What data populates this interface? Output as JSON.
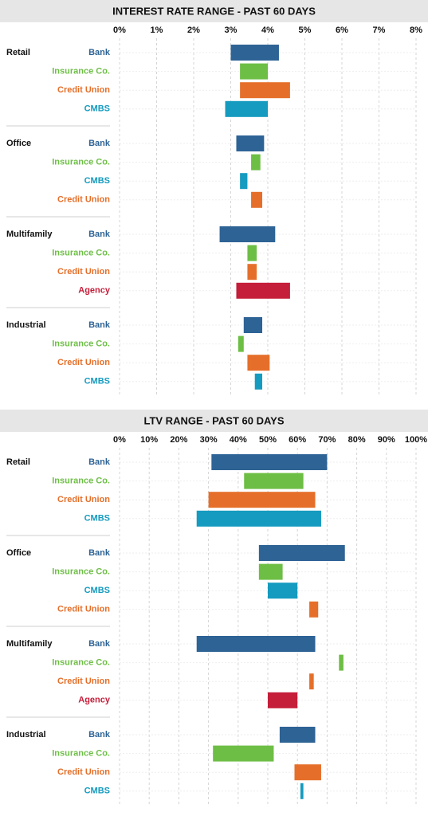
{
  "chart_data": [
    {
      "type": "range-bar",
      "title": "INTEREST RATE RANGE - PAST 60 DAYS",
      "xlim": [
        0,
        8
      ],
      "xticks": [
        {
          "value": 0,
          "label": "0%"
        },
        {
          "value": 1,
          "label": "1%"
        },
        {
          "value": 2,
          "label": "2%"
        },
        {
          "value": 3,
          "label": "3%"
        },
        {
          "value": 4,
          "label": "4%"
        },
        {
          "value": 5,
          "label": "5%"
        },
        {
          "value": 6,
          "label": "6%"
        },
        {
          "value": 7,
          "label": "7%"
        },
        {
          "value": 8,
          "label": "8%"
        }
      ],
      "grid": true,
      "groups": [
        {
          "name": "Retail",
          "rows": [
            {
              "label": "Bank",
              "color": "#2e6395",
              "range": [
                3.0,
                4.3
              ]
            },
            {
              "label": "Insurance Co.",
              "color": "#6dbe45",
              "range": [
                3.25,
                4.0
              ]
            },
            {
              "label": "Credit Union",
              "color": "#e56f2a",
              "range": [
                3.25,
                4.6
              ]
            },
            {
              "label": "CMBS",
              "color": "#159bbf",
              "range": [
                2.85,
                4.0
              ]
            }
          ]
        },
        {
          "name": "Office",
          "rows": [
            {
              "label": "Bank",
              "color": "#2e6395",
              "range": [
                3.15,
                3.9
              ]
            },
            {
              "label": "Insurance Co.",
              "color": "#6dbe45",
              "range": [
                3.55,
                3.8
              ]
            },
            {
              "label": "CMBS",
              "color": "#159bbf",
              "range": [
                3.25,
                3.45
              ]
            },
            {
              "label": "Credit Union",
              "color": "#e56f2a",
              "range": [
                3.55,
                3.85
              ]
            }
          ]
        },
        {
          "name": "Multifamily",
          "rows": [
            {
              "label": "Bank",
              "color": "#2e6395",
              "range": [
                2.7,
                4.2
              ]
            },
            {
              "label": "Insurance Co.",
              "color": "#6dbe45",
              "range": [
                3.45,
                3.7
              ]
            },
            {
              "label": "Credit Union",
              "color": "#e56f2a",
              "range": [
                3.45,
                3.7
              ]
            },
            {
              "label": "Agency",
              "color": "#c41e3a",
              "range": [
                3.15,
                4.6
              ]
            }
          ]
        },
        {
          "name": "Industrial",
          "rows": [
            {
              "label": "Bank",
              "color": "#2e6395",
              "range": [
                3.35,
                3.85
              ]
            },
            {
              "label": "Insurance Co.",
              "color": "#6dbe45",
              "range": [
                3.2,
                3.35
              ]
            },
            {
              "label": "Credit Union",
              "color": "#e56f2a",
              "range": [
                3.45,
                4.05
              ]
            },
            {
              "label": "CMBS",
              "color": "#159bbf",
              "range": [
                3.65,
                3.85
              ]
            }
          ]
        }
      ]
    },
    {
      "type": "range-bar",
      "title": "LTV RANGE - PAST 60 DAYS",
      "xlim": [
        0,
        100
      ],
      "xticks": [
        {
          "value": 0,
          "label": "0%"
        },
        {
          "value": 10,
          "label": "10%"
        },
        {
          "value": 20,
          "label": "20%"
        },
        {
          "value": 30,
          "label": "30%"
        },
        {
          "value": 40,
          "label": "40%"
        },
        {
          "value": 50,
          "label": "50%"
        },
        {
          "value": 60,
          "label": "60%"
        },
        {
          "value": 70,
          "label": "70%"
        },
        {
          "value": 80,
          "label": "80%"
        },
        {
          "value": 90,
          "label": "90%"
        },
        {
          "value": 100,
          "label": "100%"
        }
      ],
      "grid": true,
      "groups": [
        {
          "name": "Retail",
          "rows": [
            {
              "label": "Bank",
              "color": "#2e6395",
              "range": [
                31,
                70
              ]
            },
            {
              "label": "Insurance Co.",
              "color": "#6dbe45",
              "range": [
                42,
                62
              ]
            },
            {
              "label": "Credit Union",
              "color": "#e56f2a",
              "range": [
                30,
                66
              ]
            },
            {
              "label": "CMBS",
              "color": "#159bbf",
              "range": [
                26,
                68
              ]
            }
          ]
        },
        {
          "name": "Office",
          "rows": [
            {
              "label": "Bank",
              "color": "#2e6395",
              "range": [
                47,
                76
              ]
            },
            {
              "label": "Insurance Co.",
              "color": "#6dbe45",
              "range": [
                47,
                55
              ]
            },
            {
              "label": "CMBS",
              "color": "#159bbf",
              "range": [
                50,
                60
              ]
            },
            {
              "label": "Credit Union",
              "color": "#e56f2a",
              "range": [
                64,
                67
              ]
            }
          ]
        },
        {
          "name": "Multifamily",
          "rows": [
            {
              "label": "Bank",
              "color": "#2e6395",
              "range": [
                26,
                66
              ]
            },
            {
              "label": "Insurance Co.",
              "color": "#6dbe45",
              "range": [
                74,
                75.5
              ]
            },
            {
              "label": "Credit Union",
              "color": "#e56f2a",
              "range": [
                64,
                65.5
              ]
            },
            {
              "label": "Agency",
              "color": "#c41e3a",
              "range": [
                50,
                60
              ]
            }
          ]
        },
        {
          "name": "Industrial",
          "rows": [
            {
              "label": "Bank",
              "color": "#2e6395",
              "range": [
                54,
                66
              ]
            },
            {
              "label": "Insurance Co.",
              "color": "#6dbe45",
              "range": [
                31.5,
                52
              ]
            },
            {
              "label": "Credit Union",
              "color": "#e56f2a",
              "range": [
                59,
                68
              ]
            },
            {
              "label": "CMBS",
              "color": "#159bbf",
              "range": [
                61,
                62
              ]
            }
          ]
        }
      ]
    }
  ]
}
